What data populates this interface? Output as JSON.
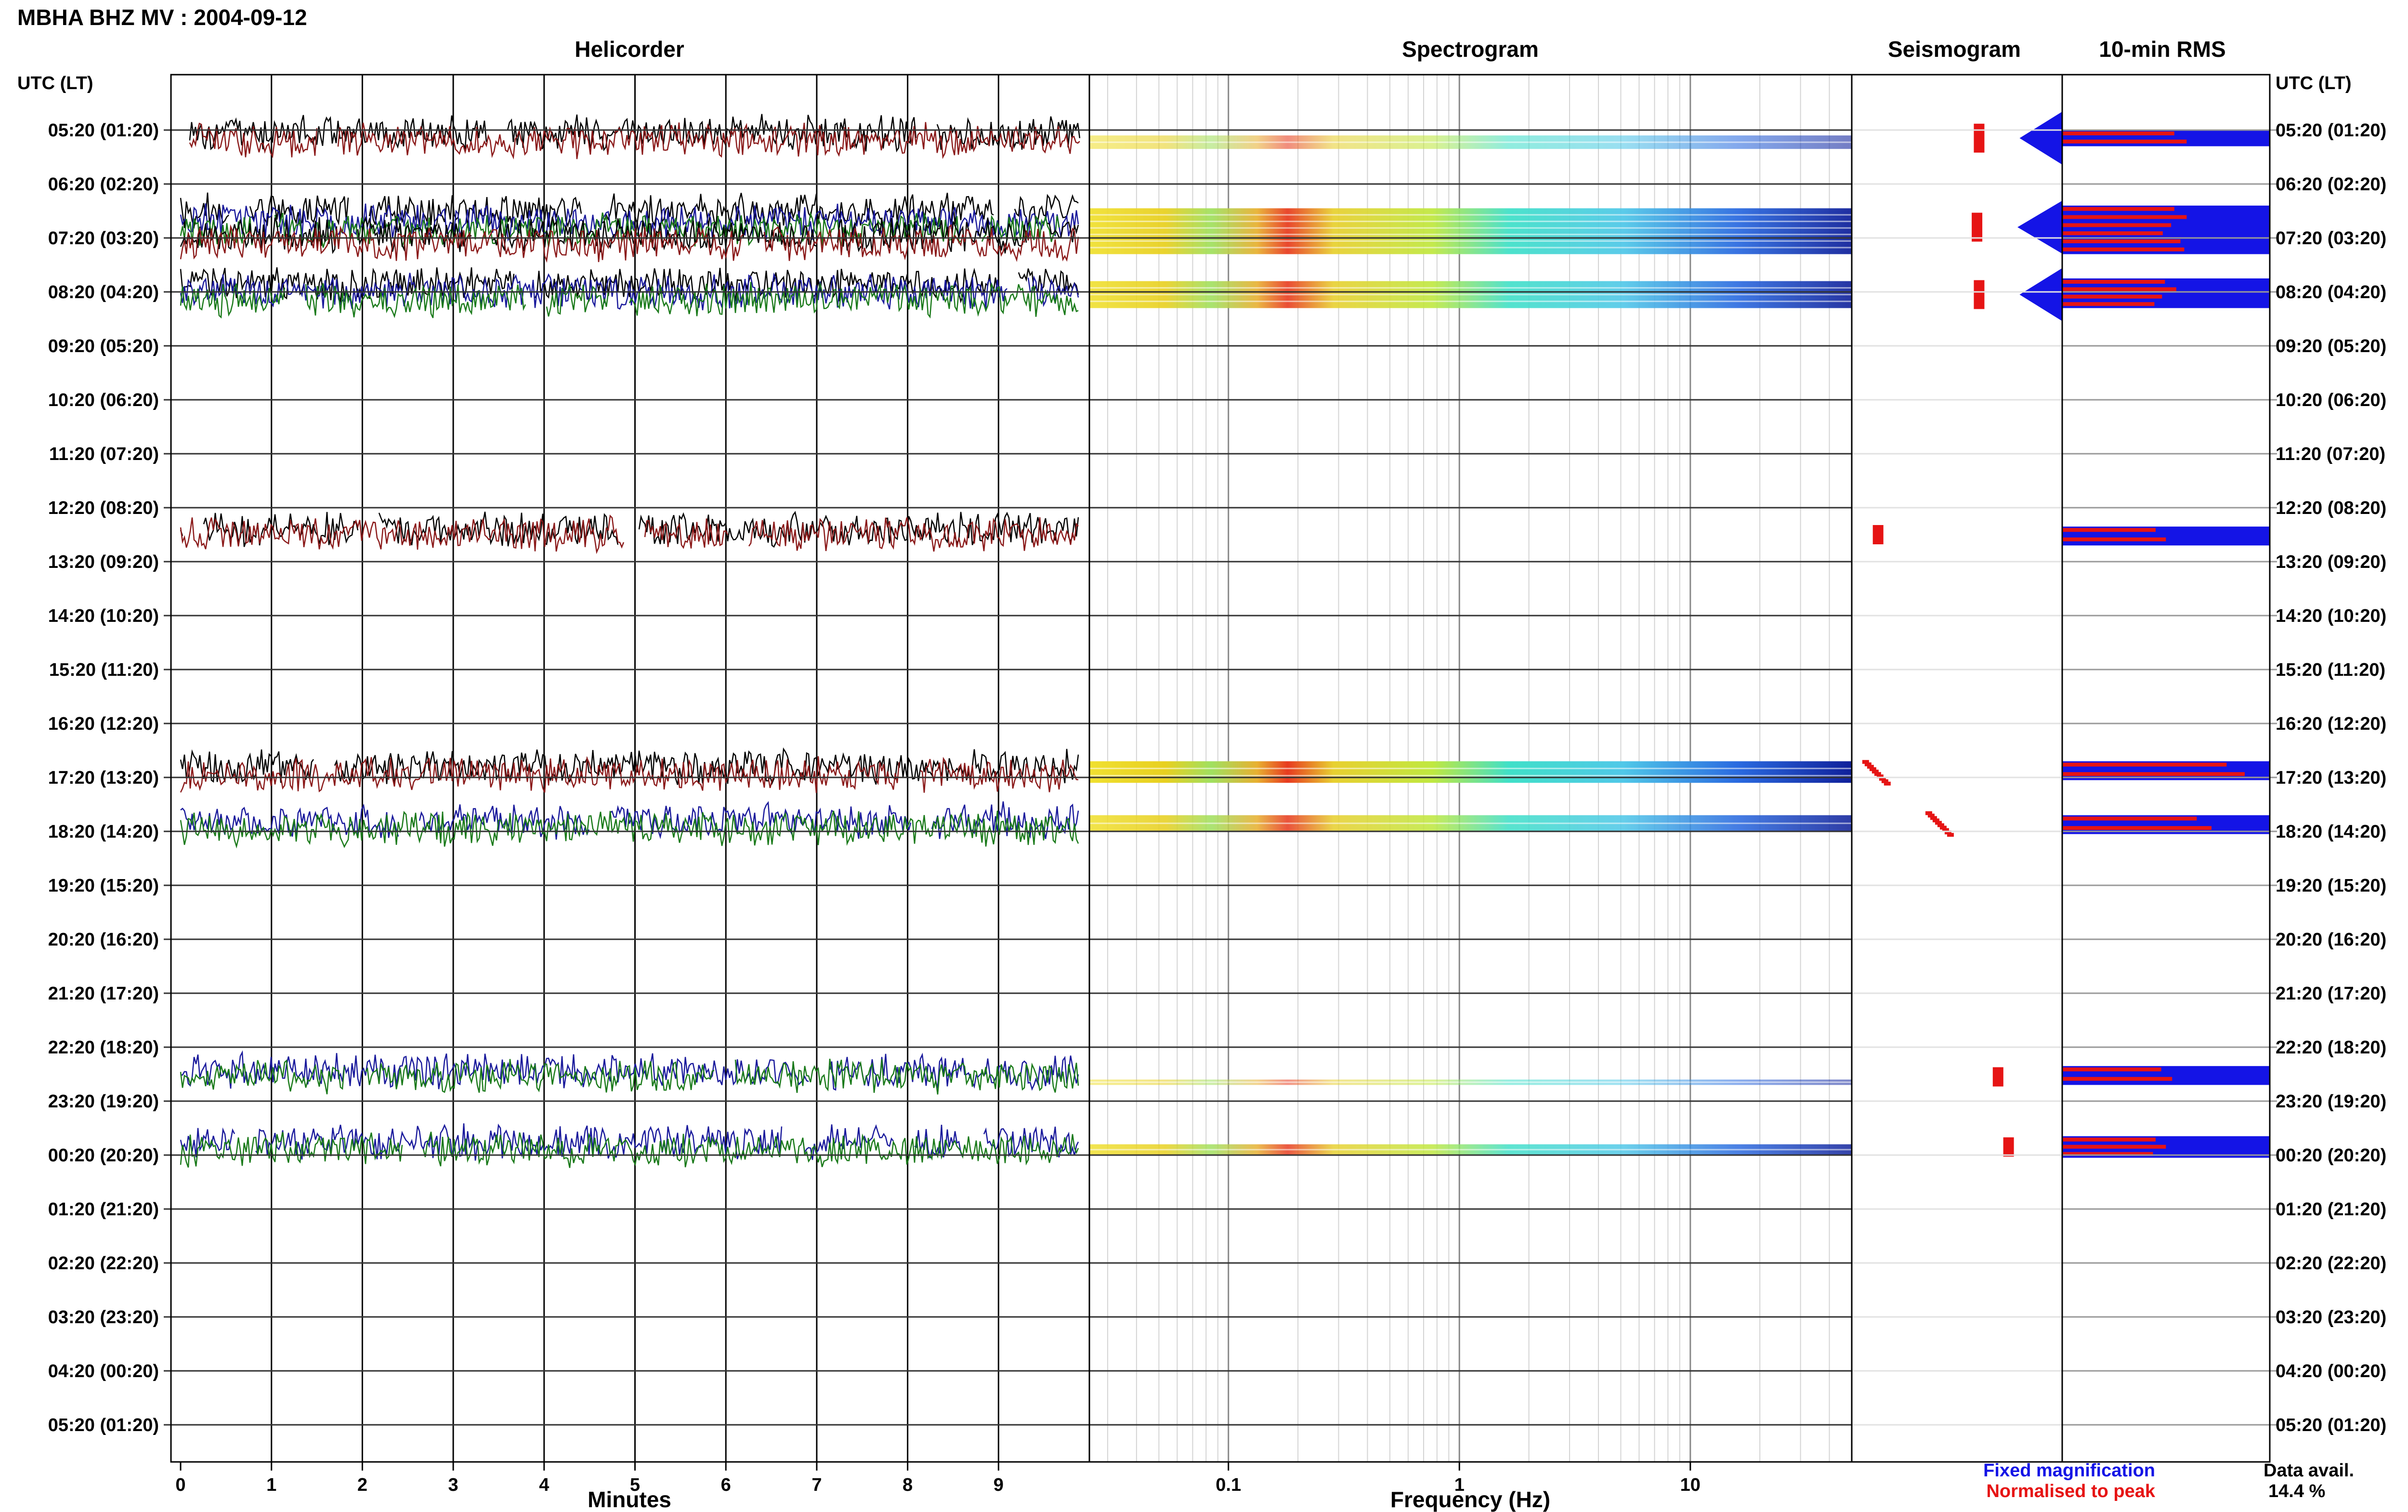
{
  "title": "MBHA BHZ MV : 2004-09-12",
  "panels": {
    "helicorder": "Helicorder",
    "spectrogram": "Spectrogram",
    "seismogram": "Seismogram",
    "rms": "10-min RMS"
  },
  "utc_header_left": "UTC (LT)",
  "utc_header_right": "UTC (LT)",
  "time_labels": [
    "05:20 (01:20)",
    "06:20 (02:20)",
    "07:20 (03:20)",
    "08:20 (04:20)",
    "09:20 (05:20)",
    "10:20 (06:20)",
    "11:20 (07:20)",
    "12:20 (08:20)",
    "13:20 (09:20)",
    "14:20 (10:20)",
    "15:20 (11:20)",
    "16:20 (12:20)",
    "17:20 (13:20)",
    "18:20 (14:20)",
    "19:20 (15:20)",
    "20:20 (16:20)",
    "21:20 (17:20)",
    "22:20 (18:20)",
    "23:20 (19:20)",
    "00:20 (20:20)",
    "01:20 (21:20)",
    "02:20 (22:20)",
    "03:20 (23:20)",
    "04:20 (00:20)",
    "05:20 (01:20)"
  ],
  "x_axes": {
    "helicorder_label": "Minutes",
    "helicorder_ticks": [
      "0",
      "1",
      "2",
      "3",
      "4",
      "5",
      "6",
      "7",
      "8",
      "9"
    ],
    "spectrogram_label": "Frequency (Hz)",
    "spectrogram_ticks": [
      "0.1",
      "1",
      "10"
    ]
  },
  "legend": {
    "fixed": "Fixed magnification",
    "normalised": "Normalised to peak",
    "fixed_color": "#1414e6",
    "normalised_color": "#e61414"
  },
  "data_avail": {
    "label": "Data avail.",
    "value": "14.4 %"
  },
  "trace_colors": [
    "#000000",
    "#8b1a1a",
    "#1a1a9c",
    "#1a7a1a"
  ],
  "chart_data": {
    "type": "heatmap",
    "helicorder": {
      "xlim_minutes": [
        0,
        10
      ],
      "traces": [
        {
          "hour": 0,
          "offset": 0.05,
          "color": 0,
          "start": 0.1,
          "end": 10
        },
        {
          "hour": 0,
          "offset": 0.2,
          "color": 1,
          "start": 0.1,
          "end": 10
        },
        {
          "hour": 1.5,
          "offset": 0,
          "color": 0,
          "start": 0,
          "end": 10
        },
        {
          "hour": 1.7,
          "offset": 0,
          "color": 2,
          "start": 0,
          "end": 10
        },
        {
          "hour": 1.85,
          "offset": 0,
          "color": 3,
          "start": 0,
          "end": 10
        },
        {
          "hour": 1.95,
          "offset": 0,
          "color": 0,
          "start": 0,
          "end": 10
        },
        {
          "hour": 2.1,
          "offset": 0,
          "color": 1,
          "start": 0,
          "end": 10
        },
        {
          "hour": 2.85,
          "offset": 0,
          "color": 0,
          "start": 0,
          "end": 10
        },
        {
          "hour": 3.0,
          "offset": 0,
          "color": 2,
          "start": 0,
          "end": 10
        },
        {
          "hour": 3.15,
          "offset": 0,
          "color": 3,
          "start": 0,
          "end": 10
        },
        {
          "hour": 7.4,
          "offset": 0,
          "color": 0,
          "start": 0,
          "end": 10
        },
        {
          "hour": 7.5,
          "offset": 0,
          "color": 1,
          "start": 0,
          "end": 10
        },
        {
          "hour": 11.8,
          "offset": 0,
          "color": 0,
          "start": 0,
          "end": 10
        },
        {
          "hour": 11.95,
          "offset": 0,
          "color": 1,
          "start": 0,
          "end": 10
        },
        {
          "hour": 12.8,
          "offset": 0,
          "color": 2,
          "start": 0,
          "end": 10
        },
        {
          "hour": 12.95,
          "offset": 0,
          "color": 3,
          "start": 0,
          "end": 10
        },
        {
          "hour": 17.45,
          "offset": 0,
          "color": 2,
          "start": 0,
          "end": 10
        },
        {
          "hour": 17.55,
          "offset": 0,
          "color": 3,
          "start": 0,
          "end": 10
        },
        {
          "hour": 18.75,
          "offset": 0,
          "color": 2,
          "start": 0,
          "end": 10
        },
        {
          "hour": 18.9,
          "offset": 0,
          "color": 3,
          "start": 0,
          "end": 10
        }
      ]
    },
    "spectrogram": {
      "xlim_hz": [
        0.025,
        50
      ],
      "log_x": true,
      "bands": [
        {
          "hour_start": 0.1,
          "hour_end": 0.35,
          "intensity": 0.35
        },
        {
          "hour_start": 1.45,
          "hour_end": 2.3,
          "intensity": 0.9
        },
        {
          "hour_start": 2.8,
          "hour_end": 3.3,
          "intensity": 0.85
        },
        {
          "hour_start": 11.7,
          "hour_end": 12.1,
          "intensity": 1.0
        },
        {
          "hour_start": 12.7,
          "hour_end": 13.0,
          "intensity": 0.8
        },
        {
          "hour_start": 17.6,
          "hour_end": 17.7,
          "intensity": 0.3
        },
        {
          "hour_start": 18.8,
          "hour_end": 19.0,
          "intensity": 0.75
        }
      ]
    },
    "rms": {
      "bars": [
        {
          "hour_start": 0.0,
          "hour_end": 0.3,
          "fixed": 1.0,
          "normalised": 0.6
        },
        {
          "hour_start": 1.4,
          "hour_end": 2.3,
          "fixed": 1.0,
          "normalised": 0.6
        },
        {
          "hour_start": 2.75,
          "hour_end": 3.3,
          "fixed": 1.0,
          "normalised": 0.55
        },
        {
          "hour_start": 7.35,
          "hour_end": 7.7,
          "fixed": 1.0,
          "normalised": 0.5
        },
        {
          "hour_start": 11.7,
          "hour_end": 12.05,
          "fixed": 1.0,
          "normalised": 0.88
        },
        {
          "hour_start": 12.7,
          "hour_end": 13.05,
          "fixed": 1.0,
          "normalised": 0.72
        },
        {
          "hour_start": 17.35,
          "hour_end": 17.7,
          "fixed": 1.0,
          "normalised": 0.53
        },
        {
          "hour_start": 18.65,
          "hour_end": 19.05,
          "fixed": 1.0,
          "normalised": 0.5
        }
      ]
    },
    "seismogram": {
      "blocks": [
        {
          "hour": 0.15,
          "pos": 0.58,
          "trail": true
        },
        {
          "hour": 1.8,
          "pos": 0.57,
          "trail": true
        },
        {
          "hour": 3.05,
          "pos": 0.58,
          "trail": true
        },
        {
          "hour": 7.5,
          "pos": 0.1,
          "trail": false
        },
        {
          "hour": 11.9,
          "pos": 0.05,
          "trail": false,
          "diagonal": true
        },
        {
          "hour": 12.85,
          "pos": 0.35,
          "trail": false,
          "diagonal": true
        },
        {
          "hour": 17.55,
          "pos": 0.67,
          "trail": false
        },
        {
          "hour": 18.85,
          "pos": 0.72,
          "trail": false
        }
      ]
    }
  }
}
